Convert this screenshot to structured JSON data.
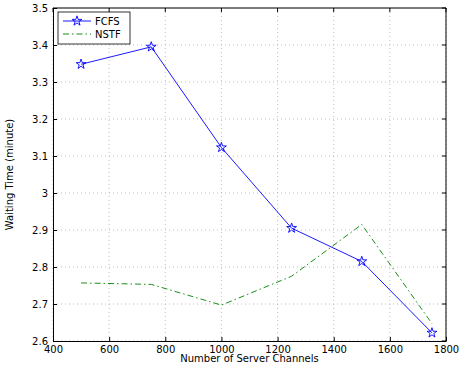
{
  "chart_data": {
    "type": "line",
    "x_label": "Number of Server Channels",
    "y_label": "Waiting Time (minute)",
    "x": [
      500,
      750,
      1000,
      1250,
      1500,
      1750
    ],
    "series": [
      {
        "name": "FCFS",
        "color": "#0000ff",
        "marker": "star",
        "line_style": "solid",
        "values": [
          3.348,
          3.395,
          3.123,
          2.905,
          2.815,
          2.622
        ]
      },
      {
        "name": "NSTF",
        "color": "#008000",
        "marker": "none",
        "line_style": "dashdot",
        "values": [
          2.757,
          2.753,
          2.697,
          2.775,
          2.915,
          2.647
        ]
      }
    ],
    "xlim": [
      400,
      1800
    ],
    "xticks": [
      400,
      600,
      800,
      1000,
      1200,
      1400,
      1600,
      1800
    ],
    "ylim": [
      2.6,
      3.5
    ],
    "yticks": [
      2.6,
      2.7,
      2.8,
      2.9,
      3,
      3.1,
      3.2,
      3.3,
      3.4,
      3.5
    ],
    "grid": true,
    "legend": "upper-left"
  }
}
